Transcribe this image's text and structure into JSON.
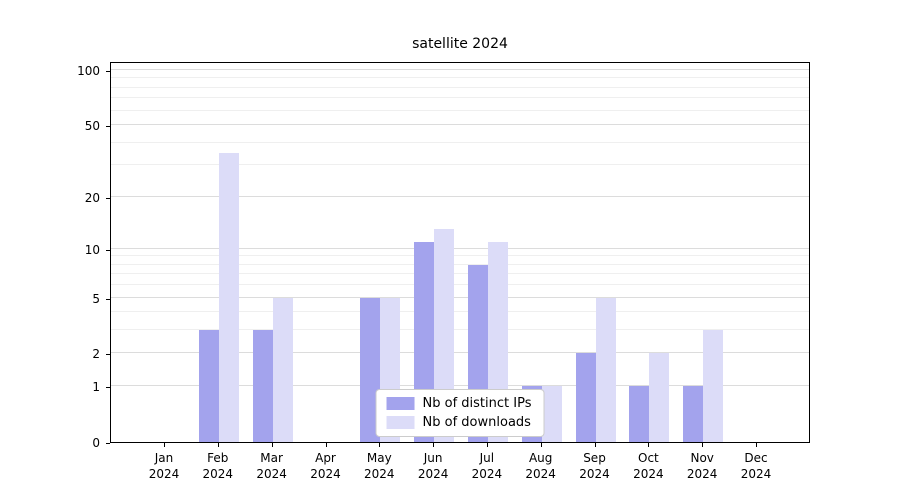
{
  "chart_data": {
    "type": "bar",
    "title": "satellite 2024",
    "categories": [
      "Jan 2024",
      "Feb 2024",
      "Mar 2024",
      "Apr 2024",
      "May 2024",
      "Jun 2024",
      "Jul 2024",
      "Aug 2024",
      "Sep 2024",
      "Oct 2024",
      "Nov 2024",
      "Dec 2024"
    ],
    "series": [
      {
        "name": "Nb of distinct IPs",
        "color": "#a3a3ed",
        "values": [
          0,
          3,
          3,
          0,
          5,
          11,
          8,
          1,
          2,
          1,
          1,
          0
        ]
      },
      {
        "name": "Nb of downloads",
        "color": "#dcdcf8",
        "values": [
          0,
          35,
          5,
          0,
          5,
          13,
          11,
          1,
          5,
          2,
          3,
          0
        ]
      }
    ],
    "yscale": "log(1+v)",
    "ylim": [
      0,
      100
    ],
    "yticks": [
      0,
      1,
      2,
      5,
      10,
      20,
      50,
      100
    ],
    "minor_gridlines": [
      3,
      4,
      6,
      7,
      8,
      9,
      30,
      40,
      60,
      70,
      80,
      90
    ],
    "grid": true,
    "legend_position": "lower center inside",
    "colors": {
      "major_grid": "#dcdcdc",
      "minor_grid": "#efefef",
      "axis": "#000000",
      "legend_border": "#cccccc"
    }
  }
}
